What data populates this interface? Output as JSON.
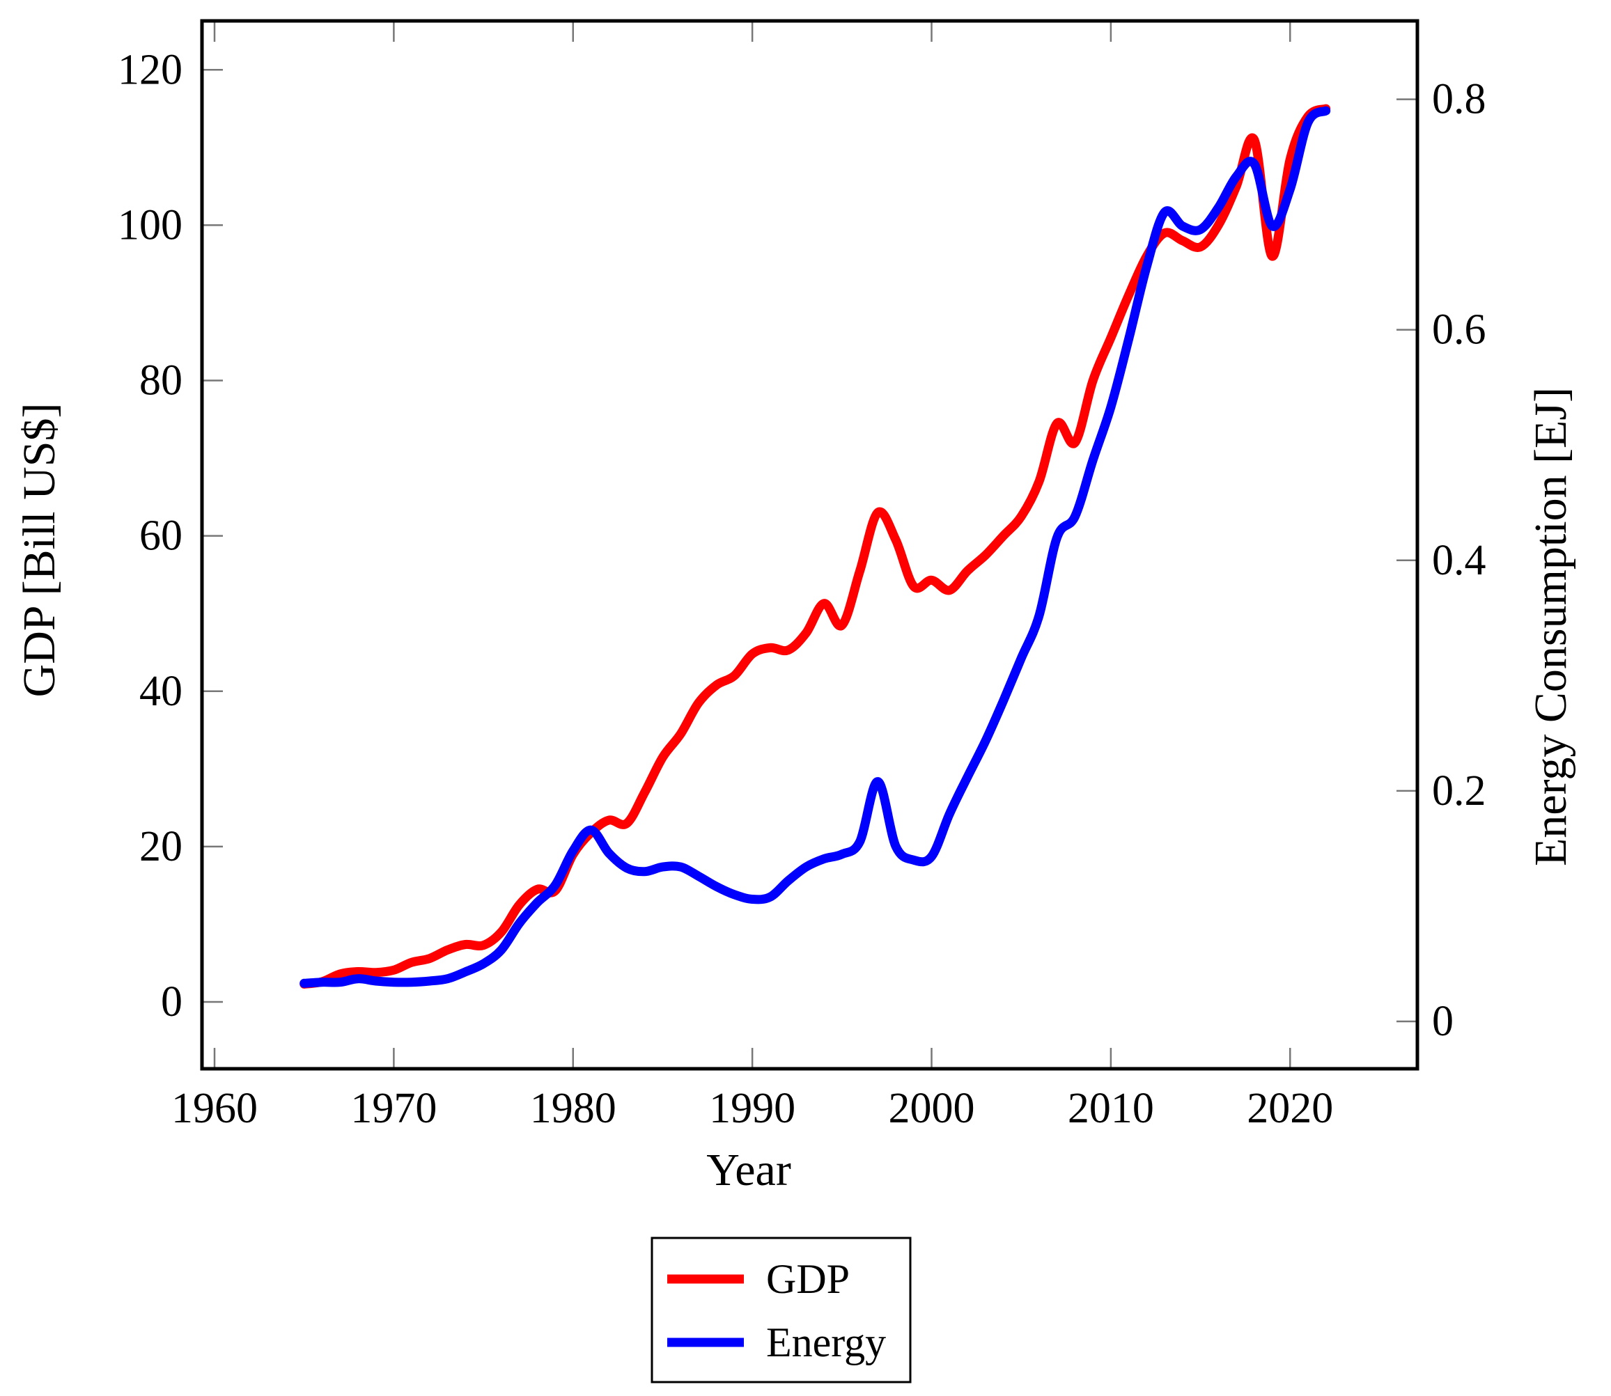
{
  "chart_data": {
    "type": "line",
    "title": "",
    "xlabel": "Year",
    "ylabel_left": "GDP [Bill US$]",
    "ylabel_right": "Energy Consumption [EJ]",
    "grid": false,
    "axis_color": "#000000",
    "tick_color": "#777777",
    "background": "#ffffff",
    "xlim": [
      1959.3,
      2027.1
    ],
    "ylim_left": [
      -8.6,
      126.3
    ],
    "ylim_right": [
      -0.0411,
      0.868
    ],
    "x_ticks": {
      "values": [
        1960,
        1970,
        1980,
        1990,
        2000,
        2010,
        2020
      ],
      "labels": [
        "1960",
        "1970",
        "1980",
        "1990",
        "2000",
        "2010",
        "2020"
      ]
    },
    "y_ticks_left": {
      "values": [
        0,
        20,
        40,
        60,
        80,
        100,
        120
      ],
      "labels": [
        "0",
        "20",
        "40",
        "60",
        "80",
        "100",
        "120"
      ]
    },
    "y_ticks_right": {
      "values": [
        0,
        0.2,
        0.4,
        0.6,
        0.8
      ],
      "labels": [
        "0",
        "0.2",
        "0.4",
        "0.6",
        "0.8"
      ]
    },
    "legend": {
      "position": "below-chart",
      "entries": [
        {
          "label": "GDP",
          "color": "#ff0000"
        },
        {
          "label": "Energy",
          "color": "#0000ff"
        }
      ]
    },
    "series": [
      {
        "name": "GDP",
        "axis": "left",
        "color": "#ff0000",
        "unit": "Bill US$",
        "years": [
          1965,
          1966,
          1967,
          1968,
          1969,
          1970,
          1971,
          1972,
          1973,
          1974,
          1975,
          1976,
          1977,
          1978,
          1979,
          1980,
          1981,
          1982,
          1983,
          1984,
          1985,
          1986,
          1987,
          1988,
          1989,
          1990,
          1991,
          1992,
          1993,
          1994,
          1995,
          1996,
          1997,
          1998,
          1999,
          2000,
          2001,
          2002,
          2003,
          2004,
          2005,
          2006,
          2007,
          2008,
          2009,
          2010,
          2011,
          2012,
          2013,
          2014,
          2015,
          2016,
          2017,
          2018,
          2019,
          2020,
          2021,
          2022
        ],
        "values": [
          2.3,
          2.6,
          3.6,
          3.9,
          3.8,
          4.1,
          5.1,
          5.6,
          6.7,
          7.4,
          7.3,
          9.0,
          12.5,
          14.5,
          14.3,
          19.0,
          21.8,
          23.4,
          23.0,
          27.0,
          31.5,
          34.5,
          38.5,
          40.8,
          42.0,
          44.8,
          45.6,
          45.3,
          47.5,
          51.3,
          48.5,
          55.5,
          63.0,
          59.5,
          53.5,
          54.3,
          53.0,
          55.5,
          57.5,
          60.0,
          62.5,
          67.0,
          74.5,
          72.0,
          80.0,
          85.5,
          91.0,
          96.0,
          99.0,
          98.0,
          97.2,
          100.0,
          105.0,
          111.0,
          96.0,
          108.5,
          114.0,
          115.0
        ]
      },
      {
        "name": "Energy",
        "axis": "right",
        "color": "#0000ff",
        "unit": "EJ",
        "years": [
          1965,
          1966,
          1967,
          1968,
          1969,
          1970,
          1971,
          1972,
          1973,
          1974,
          1975,
          1976,
          1977,
          1978,
          1979,
          1980,
          1981,
          1982,
          1983,
          1984,
          1985,
          1986,
          1987,
          1988,
          1989,
          1990,
          1991,
          1992,
          1993,
          1994,
          1995,
          1996,
          1997,
          1998,
          1999,
          2000,
          2001,
          2002,
          2003,
          2004,
          2005,
          2006,
          2007,
          2008,
          2009,
          2010,
          2011,
          2012,
          2013,
          2014,
          2015,
          2016,
          2017,
          2018,
          2019,
          2020,
          2021,
          2022
        ],
        "values": [
          0.033,
          0.034,
          0.034,
          0.037,
          0.035,
          0.034,
          0.034,
          0.035,
          0.037,
          0.043,
          0.05,
          0.062,
          0.085,
          0.103,
          0.118,
          0.148,
          0.166,
          0.146,
          0.133,
          0.13,
          0.134,
          0.134,
          0.126,
          0.117,
          0.11,
          0.106,
          0.108,
          0.122,
          0.134,
          0.141,
          0.145,
          0.156,
          0.208,
          0.152,
          0.14,
          0.143,
          0.18,
          0.212,
          0.243,
          0.278,
          0.315,
          0.352,
          0.42,
          0.438,
          0.487,
          0.533,
          0.592,
          0.655,
          0.702,
          0.69,
          0.687,
          0.706,
          0.733,
          0.744,
          0.69,
          0.722,
          0.78,
          0.79
        ]
      }
    ]
  }
}
